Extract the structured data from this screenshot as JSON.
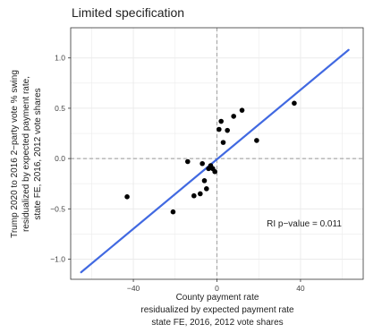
{
  "chart_data": {
    "type": "scatter",
    "title": "Limited specification",
    "xlabel": [
      "County payment rate",
      "residualized by expected payment rate",
      "state FE, 2016, 2012 vote shares"
    ],
    "ylabel": [
      "Trump 2020 to 2016 2−party vote % swing",
      "residualized by expected payment rate,",
      "state FE, 2016, 2012 vote shares"
    ],
    "xlim": [
      -70,
      70
    ],
    "ylim": [
      -1.2,
      1.3
    ],
    "x_ticks": [
      -40,
      0,
      40
    ],
    "x_tick_labels": [
      "−40",
      "0",
      "40"
    ],
    "y_ticks": [
      -1.0,
      -0.5,
      0.0,
      0.5,
      1.0
    ],
    "y_tick_labels": [
      "−1.0",
      "−0.5",
      "0.0",
      "0.5",
      "1.0"
    ],
    "grid": true,
    "reference_lines": {
      "x": 0,
      "y": 0
    },
    "annotation": "RI p−value = 0.011",
    "points": [
      {
        "x": -43,
        "y": -0.38
      },
      {
        "x": -21,
        "y": -0.53
      },
      {
        "x": -14,
        "y": -0.03
      },
      {
        "x": -11,
        "y": -0.37
      },
      {
        "x": -8,
        "y": -0.35
      },
      {
        "x": -7,
        "y": -0.05
      },
      {
        "x": -6,
        "y": -0.22
      },
      {
        "x": -5,
        "y": -0.3
      },
      {
        "x": -4,
        "y": -0.1
      },
      {
        "x": -3,
        "y": -0.07
      },
      {
        "x": -2,
        "y": -0.1
      },
      {
        "x": -1,
        "y": -0.13
      },
      {
        "x": 1,
        "y": 0.29
      },
      {
        "x": 2,
        "y": 0.37
      },
      {
        "x": 3,
        "y": 0.16
      },
      {
        "x": 5,
        "y": 0.28
      },
      {
        "x": 8,
        "y": 0.42
      },
      {
        "x": 12,
        "y": 0.48
      },
      {
        "x": 19,
        "y": 0.18
      },
      {
        "x": 37,
        "y": 0.55
      }
    ],
    "fit_line": {
      "x": [
        -65,
        63
      ],
      "y": [
        -1.13,
        1.08
      ]
    },
    "colors": {
      "points": "#000000",
      "fit_line": "#4169e1",
      "grid": "#ebebeb",
      "reference_lines": "#999999",
      "axis_frame": "#333333"
    }
  }
}
